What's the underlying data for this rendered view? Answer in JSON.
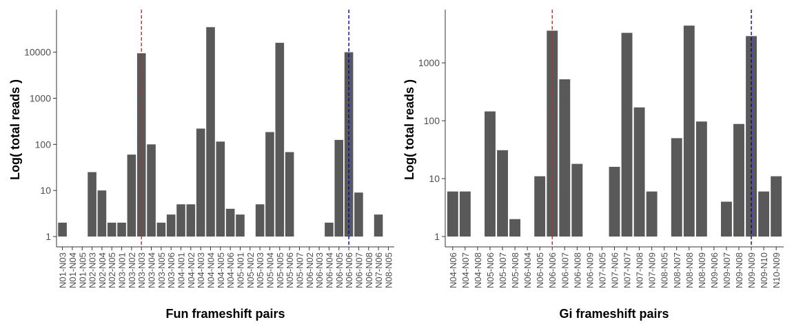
{
  "chart_data": [
    {
      "type": "bar",
      "xlabel": "Fun frameshift pairs",
      "ylabel": "Log( total reads )",
      "y_scale": "log10",
      "ylim": [
        1,
        50000
      ],
      "ytick_labels": [
        "1",
        "10",
        "100",
        "1000",
        "10000"
      ],
      "yticks": [
        1,
        10,
        100,
        1000,
        10000
      ],
      "grid": false,
      "bar_color": "#595959",
      "reference_lines": [
        {
          "category": "N03-N03",
          "color": "#e31a1c",
          "style": "dashed"
        },
        {
          "category": "N06-N06",
          "color": "#0000cd",
          "style": "dashed"
        }
      ],
      "categories": [
        "N01-N03",
        "N01-N04",
        "N01-N05",
        "N02-N03",
        "N02-N04",
        "N02-N05",
        "N03-N01",
        "N03-N02",
        "N03-N03",
        "N03-N04",
        "N03-N05",
        "N03-N06",
        "N04-N01",
        "N04-N02",
        "N04-N03",
        "N04-N04",
        "N04-N05",
        "N04-N06",
        "N05-N01",
        "N05-N02",
        "N05-N03",
        "N05-N04",
        "N05-N05",
        "N05-N06",
        "N05-N07",
        "N06-N02",
        "N06-N03",
        "N06-N04",
        "N06-N05",
        "N06-N06",
        "N06-N07",
        "N06-N08",
        "N07-N06",
        "N08-N05"
      ],
      "values": [
        2,
        1,
        1,
        25,
        10,
        2,
        2,
        60,
        9500,
        100,
        2,
        3,
        5,
        5,
        220,
        35000,
        115,
        4,
        3,
        1,
        5,
        185,
        16000,
        68,
        1,
        1,
        1,
        2,
        125,
        10000,
        9,
        1,
        3,
        1
      ]
    },
    {
      "type": "bar",
      "xlabel": "Gi frameshift pairs",
      "ylabel": "Log( total reads )",
      "y_scale": "log10",
      "ylim": [
        1,
        5500
      ],
      "ytick_labels": [
        "1",
        "10",
        "100",
        "1000"
      ],
      "yticks": [
        1,
        10,
        100,
        1000
      ],
      "grid": false,
      "bar_color": "#595959",
      "reference_lines": [
        {
          "category": "N06-N06",
          "color": "#e31a1c",
          "style": "dashed"
        },
        {
          "category": "N09-N09",
          "color": "#0000cd",
          "style": "dashed"
        }
      ],
      "categories": [
        "N04-N06",
        "N04-N07",
        "N04-N08",
        "N05-N06",
        "N05-N07",
        "N05-N08",
        "N06-N04",
        "N06-N05",
        "N06-N06",
        "N06-N07",
        "N06-N08",
        "N06-N09",
        "N07-N05",
        "N07-N06",
        "N07-N07",
        "N07-N08",
        "N07-N09",
        "N08-N05",
        "N08-N07",
        "N08-N08",
        "N08-N09",
        "N09-N06",
        "N09-N07",
        "N09-N08",
        "N09-N09",
        "N09-N10",
        "N10-N09"
      ],
      "values": [
        6,
        6,
        1,
        145,
        31,
        2,
        1,
        11,
        3600,
        520,
        18,
        1,
        1,
        16,
        3300,
        170,
        6,
        1,
        50,
        4400,
        97,
        1,
        4,
        88,
        2900,
        6,
        11
      ]
    }
  ]
}
